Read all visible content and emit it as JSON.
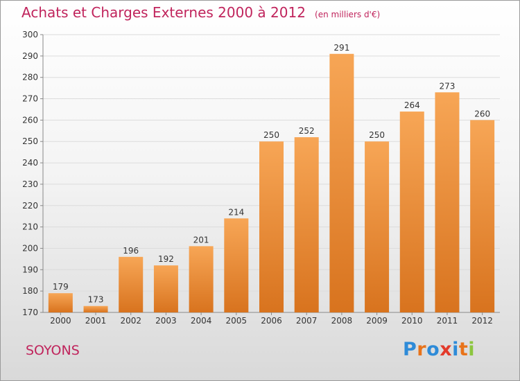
{
  "title": "Achats et Charges Externes 2000 à 2012",
  "unit_note": "(en milliers d'€)",
  "location": "SOYONS",
  "brand": {
    "text": "Proxiti",
    "colors": [
      "#2e8bd8",
      "#e8731a",
      "#2e8bd8",
      "#e33a2b",
      "#2e8bd8",
      "#e8731a",
      "#8cc63f"
    ]
  },
  "colors": {
    "bar_top": "#f7a656",
    "bar_bottom": "#d8731e",
    "title": "#c0245c",
    "grid": "#dcdcdc",
    "axis_text": "#333333"
  },
  "chart_data": {
    "type": "bar",
    "title": "Achats et Charges Externes 2000 à 2012",
    "categories": [
      "2000",
      "2001",
      "2002",
      "2003",
      "2004",
      "2005",
      "2006",
      "2007",
      "2008",
      "2009",
      "2010",
      "2011",
      "2012"
    ],
    "values": [
      179,
      173,
      196,
      192,
      201,
      214,
      250,
      252,
      291,
      250,
      264,
      273,
      260
    ],
    "ylim": [
      170,
      300
    ],
    "yticks": [
      170,
      180,
      190,
      200,
      210,
      220,
      230,
      240,
      250,
      260,
      270,
      280,
      290,
      300
    ],
    "xlabel": "",
    "ylabel": "",
    "grid": true,
    "data_labels": true
  }
}
